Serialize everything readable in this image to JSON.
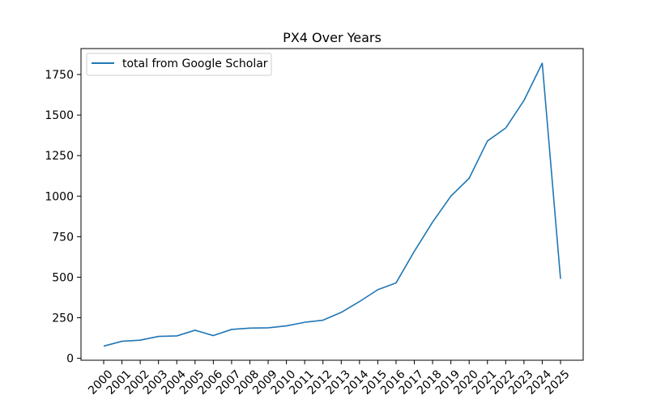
{
  "chart_data": {
    "type": "line",
    "title": "PX4 Over Years",
    "xlabel": "",
    "ylabel": "",
    "categories": [
      "2000",
      "2001",
      "2002",
      "2003",
      "2004",
      "2005",
      "2006",
      "2007",
      "2008",
      "2009",
      "2010",
      "2011",
      "2012",
      "2013",
      "2014",
      "2015",
      "2016",
      "2017",
      "2018",
      "2019",
      "2020",
      "2021",
      "2022",
      "2023",
      "2024",
      "2025"
    ],
    "series": [
      {
        "name": "total from Google Scholar",
        "color": "#1f77b4",
        "values": [
          75,
          105,
          112,
          135,
          138,
          173,
          140,
          178,
          186,
          188,
          200,
          222,
          235,
          283,
          350,
          423,
          465,
          660,
          840,
          1000,
          1110,
          1340,
          1420,
          1590,
          1820,
          490
        ]
      }
    ],
    "ylim": [
      -12,
      1910
    ],
    "yticks": [
      0,
      250,
      500,
      750,
      1000,
      1250,
      1500,
      1750
    ],
    "grid": false,
    "legend_position": "top-left"
  }
}
